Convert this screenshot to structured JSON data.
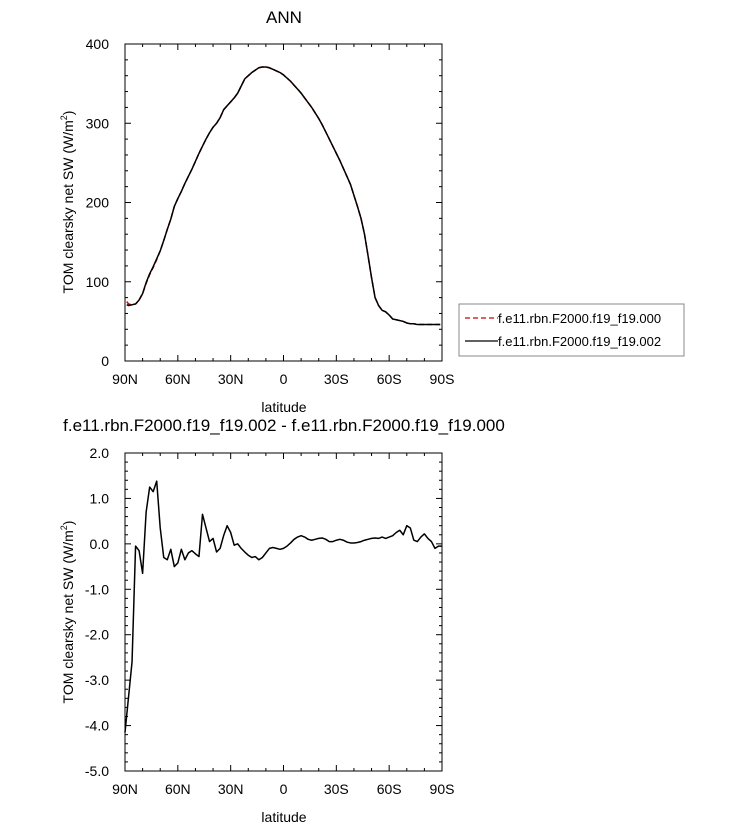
{
  "chart_data": [
    {
      "type": "line",
      "title": "ANN",
      "xlabel": "latitude",
      "ylabel": "TOM clearsky net SW (W/m",
      "ylabel_sup": "2",
      "ylabel_close": ")",
      "xlim": [
        90,
        -90
      ],
      "ylim": [
        0,
        400
      ],
      "xticks": [
        90,
        60,
        30,
        0,
        -30,
        -60,
        -90
      ],
      "xtick_labels": [
        "90N",
        "60N",
        "30N",
        "0",
        "30S",
        "60S",
        "90S"
      ],
      "yticks": [
        0,
        100,
        200,
        300,
        400
      ],
      "ytick_labels": [
        "0",
        "100",
        "200",
        "300",
        "400"
      ],
      "grid": false,
      "legend": "outside-right",
      "x": [
        89,
        88,
        86,
        84,
        82,
        80,
        78,
        76,
        74,
        72,
        70,
        68,
        66,
        64,
        62,
        60,
        58,
        56,
        54,
        52,
        50,
        48,
        46,
        44,
        42,
        40,
        38,
        36,
        34,
        32,
        30,
        28,
        26,
        24,
        22,
        20,
        18,
        16,
        14,
        12,
        10,
        8,
        6,
        4,
        2,
        0,
        -2,
        -4,
        -6,
        -8,
        -10,
        -12,
        -14,
        -16,
        -18,
        -20,
        -22,
        -24,
        -26,
        -28,
        -30,
        -32,
        -34,
        -36,
        -38,
        -40,
        -42,
        -44,
        -46,
        -48,
        -50,
        -52,
        -54,
        -56,
        -58,
        -60,
        -62,
        -64,
        -66,
        -68,
        -70,
        -72,
        -74,
        -76,
        -78,
        -80,
        -82,
        -84,
        -86,
        -88,
        -89
      ],
      "series": [
        {
          "name": "f.e11.rbn.F2000.f19_f19.000",
          "color": "#cc0000",
          "dash": "dashed",
          "values": [
            75,
            72,
            71,
            72,
            77,
            85,
            98,
            109,
            118,
            128,
            139,
            152,
            166,
            179,
            195,
            205,
            214,
            224,
            233,
            242,
            252,
            262,
            271,
            280,
            288,
            295,
            300,
            307,
            317,
            322,
            327,
            332,
            338,
            347,
            356,
            360,
            364,
            367,
            370,
            371,
            371,
            370,
            368,
            366,
            364,
            361,
            357,
            353,
            348,
            343,
            338,
            332,
            326,
            320,
            313,
            306,
            298,
            289,
            280,
            271,
            262,
            253,
            243,
            233,
            223,
            209,
            195,
            180,
            160,
            133,
            105,
            80,
            70,
            64,
            62,
            58,
            53,
            52,
            51,
            50,
            48,
            47,
            47,
            46,
            46,
            46,
            46,
            46,
            46,
            46,
            46
          ]
        },
        {
          "name": "f.e11.rbn.F2000.f19_f19.002",
          "color": "#000000",
          "dash": "solid",
          "values": [
            71,
            70,
            71,
            72,
            77,
            85,
            99,
            110,
            119,
            129,
            139,
            152,
            166,
            179,
            195,
            205,
            214,
            224,
            233,
            242,
            252,
            262,
            271,
            280,
            288,
            295,
            300,
            307,
            317,
            322,
            327,
            332,
            338,
            347,
            356,
            360,
            364,
            367,
            370,
            371,
            371,
            370,
            368,
            366,
            364,
            361,
            357,
            353,
            348,
            343,
            338,
            332,
            326,
            320,
            313,
            306,
            298,
            289,
            280,
            271,
            262,
            253,
            243,
            233,
            223,
            209,
            195,
            180,
            160,
            133,
            105,
            80,
            70,
            64,
            62,
            58,
            53,
            52,
            51,
            50,
            48,
            47,
            47,
            46,
            46,
            46,
            46,
            46,
            46,
            46,
            46
          ]
        }
      ]
    },
    {
      "type": "line",
      "title": "f.e11.rbn.F2000.f19_f19.002 - f.e11.rbn.F2000.f19_f19.000",
      "xlabel": "latitude",
      "ylabel": "TOM clearsky net SW (W/m",
      "ylabel_sup": "2",
      "ylabel_close": ")",
      "xlim": [
        90,
        -90
      ],
      "ylim": [
        -5,
        2
      ],
      "xticks": [
        90,
        60,
        30,
        0,
        -30,
        -60,
        -90
      ],
      "xtick_labels": [
        "90N",
        "60N",
        "30N",
        "0",
        "30S",
        "60S",
        "90S"
      ],
      "yticks": [
        -5,
        -4,
        -3,
        -2,
        -1,
        0,
        1,
        2
      ],
      "ytick_labels": [
        "-5.0",
        "-4.0",
        "-3.0",
        "-2.0",
        "-1.0",
        "0.0",
        "1.0",
        "2.0"
      ],
      "grid": false,
      "x": [
        90,
        86,
        84,
        82,
        80,
        78,
        76,
        74,
        72,
        70,
        68,
        66,
        64,
        62,
        60,
        58,
        56,
        54,
        52,
        50,
        48,
        46,
        44,
        42,
        40,
        38,
        36,
        34,
        32,
        30,
        28,
        26,
        24,
        22,
        20,
        18,
        16,
        14,
        12,
        10,
        8,
        6,
        4,
        2,
        0,
        -2,
        -4,
        -6,
        -8,
        -10,
        -12,
        -14,
        -16,
        -18,
        -20,
        -22,
        -24,
        -26,
        -28,
        -30,
        -32,
        -34,
        -36,
        -38,
        -40,
        -42,
        -44,
        -46,
        -48,
        -50,
        -52,
        -54,
        -56,
        -58,
        -60,
        -62,
        -64,
        -66,
        -68,
        -70,
        -72,
        -74,
        -76,
        -78,
        -80,
        -82,
        -84,
        -86,
        -88,
        -90
      ],
      "series": [
        {
          "color": "#000000",
          "values": [
            -4.15,
            -2.6,
            -0.05,
            -0.15,
            -0.65,
            0.7,
            1.25,
            1.15,
            1.38,
            0.35,
            -0.3,
            -0.35,
            -0.12,
            -0.5,
            -0.42,
            -0.12,
            -0.35,
            -0.2,
            -0.15,
            -0.22,
            -0.28,
            0.65,
            0.35,
            0.05,
            0.12,
            -0.18,
            -0.1,
            0.18,
            0.4,
            0.25,
            -0.03,
            0.0,
            -0.1,
            -0.18,
            -0.25,
            -0.3,
            -0.28,
            -0.35,
            -0.3,
            -0.2,
            -0.1,
            -0.08,
            -0.1,
            -0.12,
            -0.1,
            -0.05,
            0.02,
            0.1,
            0.15,
            0.18,
            0.15,
            0.1,
            0.08,
            0.1,
            0.12,
            0.13,
            0.1,
            0.05,
            0.05,
            0.08,
            0.1,
            0.08,
            0.04,
            0.02,
            0.02,
            0.03,
            0.05,
            0.08,
            0.1,
            0.12,
            0.13,
            0.12,
            0.15,
            0.12,
            0.15,
            0.18,
            0.25,
            0.3,
            0.2,
            0.4,
            0.35,
            0.08,
            0.05,
            0.15,
            0.22,
            0.12,
            0.05,
            -0.1,
            -0.05,
            -0.05
          ]
        }
      ]
    }
  ]
}
